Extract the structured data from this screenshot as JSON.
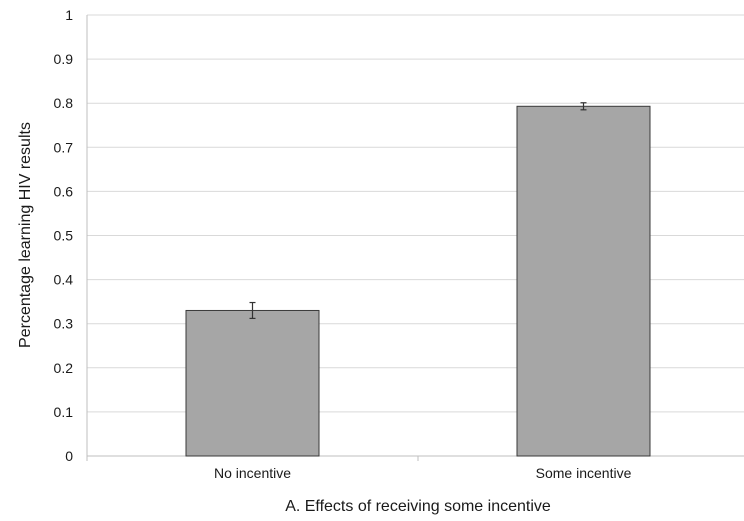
{
  "chart_data": {
    "type": "bar",
    "categories": [
      "No incentive",
      "Some incentive"
    ],
    "values": [
      0.33,
      0.793
    ],
    "error": [
      0.018,
      0.008
    ],
    "xlabel": "A. Effects of receiving some incentive",
    "ylabel": "Percentage learning HIV results",
    "ylim": [
      0,
      1
    ],
    "yticks": [
      "0",
      "0.1",
      "0.2",
      "0.3",
      "0.4",
      "0.5",
      "0.6",
      "0.7",
      "0.8",
      "0.9",
      "1"
    ],
    "grid": true,
    "bar_color": "#a6a6a6"
  }
}
